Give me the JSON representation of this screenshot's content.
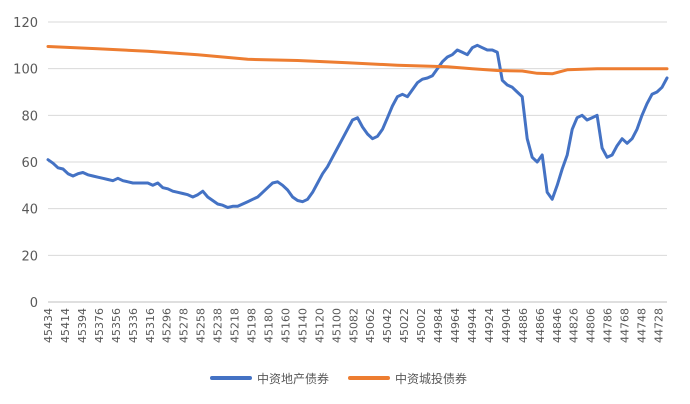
{
  "chart_data": {
    "type": "line",
    "title": "",
    "xlabel": "",
    "ylabel": "",
    "ylim": [
      0,
      120
    ],
    "yticks": [
      "0",
      "20",
      "40",
      "60",
      "80",
      "100",
      "120"
    ],
    "xtick_labels": [
      "45434",
      "45414",
      "45394",
      "45376",
      "45356",
      "45336",
      "45316",
      "45296",
      "45278",
      "45258",
      "45238",
      "45218",
      "45198",
      "45180",
      "45160",
      "45140",
      "45120",
      "45100",
      "45082",
      "45062",
      "45042",
      "45022",
      "45002",
      "44984",
      "44964",
      "44944",
      "44924",
      "44904",
      "44886",
      "44866",
      "44846",
      "44826",
      "44806",
      "44786",
      "44768",
      "44748",
      "44728"
    ],
    "grid": "horizontal",
    "legend": "bottom",
    "x_points": 214,
    "series": [
      {
        "name": "中资地产债券",
        "color": "#4472C4",
        "points": [
          [
            0,
            61
          ],
          [
            2,
            59.5
          ],
          [
            4,
            57.5
          ],
          [
            6,
            57
          ],
          [
            8,
            55
          ],
          [
            10,
            54
          ],
          [
            12,
            55
          ],
          [
            14,
            55.5
          ],
          [
            16,
            54.5
          ],
          [
            18,
            54
          ],
          [
            20,
            53.5
          ],
          [
            22,
            53
          ],
          [
            24,
            52.5
          ],
          [
            26,
            52
          ],
          [
            28,
            53
          ],
          [
            30,
            52
          ],
          [
            32,
            51.5
          ],
          [
            34,
            51
          ],
          [
            36,
            51
          ],
          [
            38,
            51
          ],
          [
            40,
            51
          ],
          [
            42,
            50
          ],
          [
            44,
            51
          ],
          [
            46,
            49
          ],
          [
            48,
            48.5
          ],
          [
            50,
            47.5
          ],
          [
            52,
            47
          ],
          [
            54,
            46.5
          ],
          [
            56,
            46
          ],
          [
            58,
            45
          ],
          [
            60,
            46
          ],
          [
            62,
            47.5
          ],
          [
            64,
            45
          ],
          [
            66,
            43.5
          ],
          [
            68,
            42
          ],
          [
            70,
            41.5
          ],
          [
            72,
            40.5
          ],
          [
            74,
            41
          ],
          [
            76,
            41
          ],
          [
            78,
            42
          ],
          [
            80,
            43
          ],
          [
            82,
            44
          ],
          [
            84,
            45
          ],
          [
            86,
            47
          ],
          [
            88,
            49
          ],
          [
            90,
            51
          ],
          [
            92,
            51.5
          ],
          [
            94,
            50
          ],
          [
            96,
            48
          ],
          [
            98,
            45
          ],
          [
            100,
            43.5
          ],
          [
            102,
            43
          ],
          [
            104,
            44
          ],
          [
            106,
            47
          ],
          [
            108,
            51
          ],
          [
            110,
            55
          ],
          [
            112,
            58
          ],
          [
            114,
            62
          ],
          [
            116,
            66
          ],
          [
            118,
            70
          ],
          [
            120,
            74
          ],
          [
            122,
            78
          ],
          [
            124,
            79
          ],
          [
            126,
            75
          ],
          [
            128,
            72
          ],
          [
            130,
            70
          ],
          [
            132,
            71
          ],
          [
            134,
            74
          ],
          [
            136,
            79
          ],
          [
            138,
            84
          ],
          [
            140,
            88
          ],
          [
            142,
            89
          ],
          [
            144,
            88
          ],
          [
            146,
            91
          ],
          [
            148,
            94
          ],
          [
            150,
            95.5
          ],
          [
            152,
            96
          ],
          [
            154,
            97
          ],
          [
            156,
            100
          ],
          [
            158,
            103
          ],
          [
            160,
            105
          ],
          [
            162,
            106
          ],
          [
            164,
            108
          ],
          [
            166,
            107
          ],
          [
            168,
            106
          ],
          [
            170,
            109
          ],
          [
            172,
            110
          ],
          [
            174,
            109
          ],
          [
            176,
            108
          ],
          [
            178,
            108
          ],
          [
            180,
            107
          ],
          [
            182,
            95
          ],
          [
            184,
            93
          ],
          [
            186,
            92
          ],
          [
            188,
            90
          ],
          [
            190,
            88
          ],
          [
            192,
            70
          ],
          [
            194,
            62
          ],
          [
            196,
            60
          ],
          [
            198,
            63
          ],
          [
            200,
            47
          ],
          [
            202,
            44
          ],
          [
            204,
            50
          ],
          [
            206,
            57
          ],
          [
            208,
            63
          ],
          [
            210,
            74
          ],
          [
            212,
            79
          ],
          [
            214,
            80
          ],
          [
            216,
            78
          ],
          [
            218,
            79
          ],
          [
            220,
            80
          ],
          [
            222,
            66
          ],
          [
            224,
            62
          ],
          [
            226,
            63
          ],
          [
            228,
            67
          ],
          [
            230,
            70
          ],
          [
            232,
            68
          ],
          [
            234,
            70
          ],
          [
            236,
            74
          ],
          [
            238,
            80
          ],
          [
            240,
            85
          ],
          [
            242,
            89
          ],
          [
            244,
            90
          ],
          [
            246,
            92
          ],
          [
            248,
            96
          ]
        ]
      },
      {
        "name": "中资城投债券",
        "color": "#ED7D31",
        "points": [
          [
            0,
            109.5
          ],
          [
            20,
            108.5
          ],
          [
            40,
            107.5
          ],
          [
            60,
            106
          ],
          [
            80,
            104
          ],
          [
            100,
            103.5
          ],
          [
            120,
            102.5
          ],
          [
            140,
            101.5
          ],
          [
            160,
            100.8
          ],
          [
            170,
            100
          ],
          [
            180,
            99.2
          ],
          [
            190,
            99
          ],
          [
            196,
            98
          ],
          [
            202,
            97.8
          ],
          [
            208,
            99.5
          ],
          [
            220,
            100
          ],
          [
            240,
            100
          ],
          [
            248,
            100
          ]
        ]
      }
    ]
  }
}
